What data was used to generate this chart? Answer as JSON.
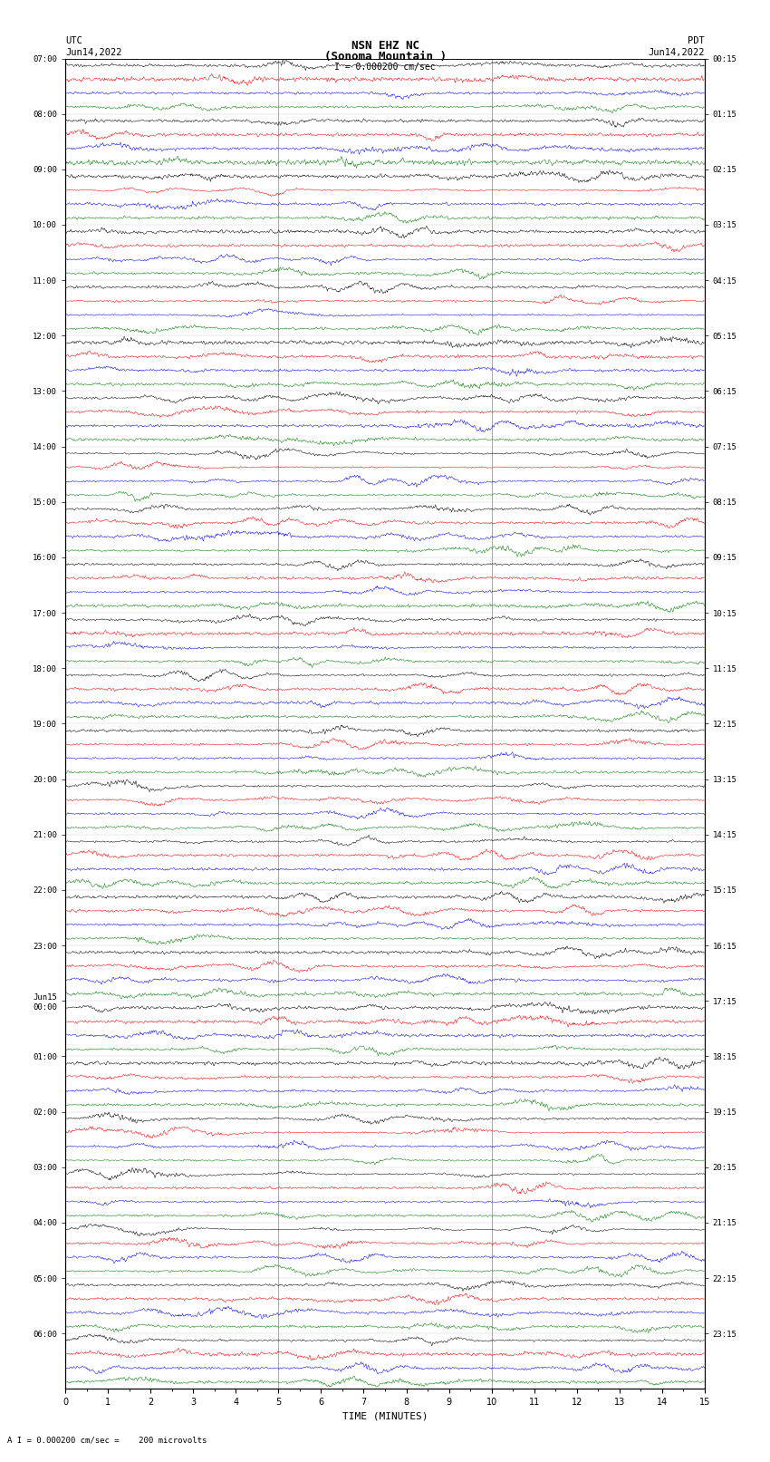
{
  "title_line1": "NSN EHZ NC",
  "title_line2": "(Sonoma Mountain )",
  "scale_text": "I = 0.000200 cm/sec",
  "left_label_top": "UTC",
  "left_label_date": "Jun14,2022",
  "right_label_top": "PDT",
  "right_label_date": "Jun14,2022",
  "bottom_label": "TIME (MINUTES)",
  "bottom_note": "A I = 0.000200 cm/sec =    200 microvolts",
  "left_times": [
    "07:00",
    "08:00",
    "09:00",
    "10:00",
    "11:00",
    "12:00",
    "13:00",
    "14:00",
    "15:00",
    "16:00",
    "17:00",
    "18:00",
    "19:00",
    "20:00",
    "21:00",
    "22:00",
    "23:00",
    "Jun15\n00:00",
    "01:00",
    "02:00",
    "03:00",
    "04:00",
    "05:00",
    "06:00"
  ],
  "right_times": [
    "00:15",
    "01:15",
    "02:15",
    "03:15",
    "04:15",
    "05:15",
    "06:15",
    "07:15",
    "08:15",
    "09:15",
    "10:15",
    "11:15",
    "12:15",
    "13:15",
    "14:15",
    "15:15",
    "16:15",
    "17:15",
    "18:15",
    "19:15",
    "20:15",
    "21:15",
    "22:15",
    "23:15"
  ],
  "n_rows": 24,
  "traces_per_row": 4,
  "colors": [
    "black",
    "red",
    "blue",
    "green"
  ],
  "bg_color": "white",
  "fig_width": 8.5,
  "fig_height": 16.13,
  "dpi": 100,
  "x_min": 0,
  "x_max": 15,
  "vline_positions": [
    5.0,
    10.0
  ],
  "vline_color": "#999999",
  "n_points": 1500
}
